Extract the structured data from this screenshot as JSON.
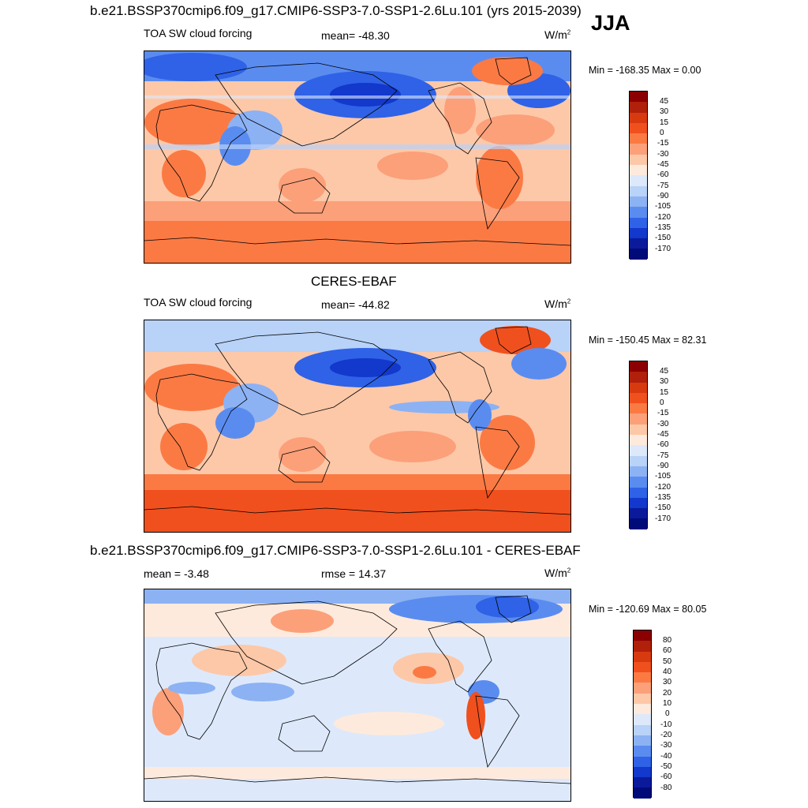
{
  "figure": {
    "title": "b.e21.BSSP370cmip6.f09_g17.CMIP6-SSP3-7.0-SSP1-2.6Lu.101 (yrs 2015-2039)",
    "season": "JJA"
  },
  "panels": [
    {
      "heading": "",
      "left_label": "TOA SW cloud forcing",
      "center_label": "mean= -48.30",
      "units": "W/m",
      "units_sup": "2",
      "minmax": "Min = -168.35 Max =   0.00",
      "levels": [
        "45",
        "30",
        "15",
        "0",
        "-15",
        "-30",
        "-45",
        "-60",
        "-75",
        "-90",
        "-105",
        "-120",
        "-135",
        "-150",
        "-170"
      ]
    },
    {
      "heading": "CERES-EBAF",
      "left_label": "TOA SW cloud forcing",
      "center_label": "mean= -44.82",
      "units": "W/m",
      "units_sup": "2",
      "minmax": "Min = -150.45 Max =  82.31",
      "levels": [
        "45",
        "30",
        "15",
        "0",
        "-15",
        "-30",
        "-45",
        "-60",
        "-75",
        "-90",
        "-105",
        "-120",
        "-135",
        "-150",
        "-170"
      ]
    },
    {
      "heading": "b.e21.BSSP370cmip6.f09_g17.CMIP6-SSP3-7.0-SSP1-2.6Lu.101 - CERES-EBAF",
      "left_label": "mean =  -3.48",
      "center_label": "rmse =  14.37",
      "units": "W/m",
      "units_sup": "2",
      "minmax": "Min = -120.69 Max =  80.05",
      "levels": [
        "80",
        "60",
        "50",
        "40",
        "30",
        "20",
        "10",
        "0",
        "-10",
        "-20",
        "-30",
        "-40",
        "-50",
        "-60",
        "-80"
      ]
    }
  ],
  "colors": {
    "scale": [
      "#8b0000",
      "#b0200a",
      "#d83a10",
      "#f0501e",
      "#fb7a44",
      "#fca07a",
      "#fdc8a8",
      "#feeadc",
      "#dde9fb",
      "#b8d2f8",
      "#8cb2f4",
      "#5a8cf0",
      "#2f62e6",
      "#1238cc",
      "#0a1a9a",
      "#000a78"
    ]
  }
}
